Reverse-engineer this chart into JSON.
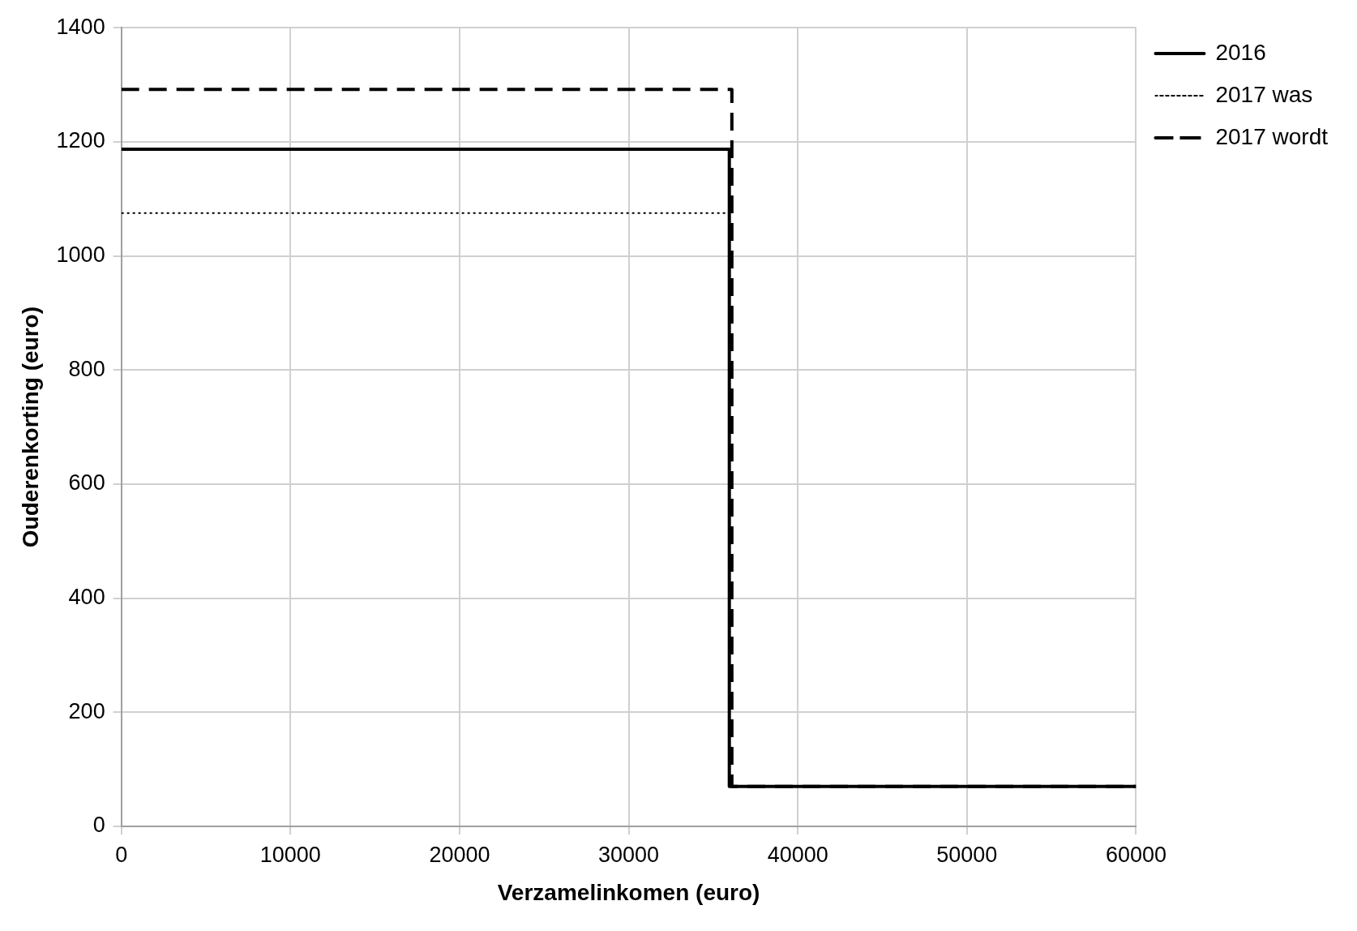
{
  "chart_data": {
    "type": "line",
    "xlabel": "Verzamelinkomen (euro)",
    "ylabel": "Ouderenkorting (euro)",
    "xlim": [
      0,
      60000
    ],
    "xticks": [
      0,
      10000,
      20000,
      30000,
      40000,
      50000,
      60000
    ],
    "ylim": [
      0,
      1400
    ],
    "yticks": [
      0,
      200,
      400,
      600,
      800,
      1000,
      1200,
      1400
    ],
    "grid": true,
    "legend": "top right",
    "marker": "none",
    "series": [
      {
        "name": "2016",
        "color": "#000000",
        "line_style": "solid",
        "x": [
          0,
          35950,
          35950,
          60000
        ],
        "values": [
          1187,
          1187,
          70,
          70
        ]
      },
      {
        "name": "2017 was",
        "color": "#000000",
        "line_style": "dotted",
        "x": [
          0,
          35950,
          35950,
          60000
        ],
        "values": [
          1075,
          1075,
          70,
          70
        ]
      },
      {
        "name": "2017 wordt",
        "color": "#000000",
        "line_style": "dashed",
        "x": [
          0,
          36100,
          36100,
          60000
        ],
        "values": [
          1292,
          1292,
          70,
          70
        ]
      }
    ]
  }
}
